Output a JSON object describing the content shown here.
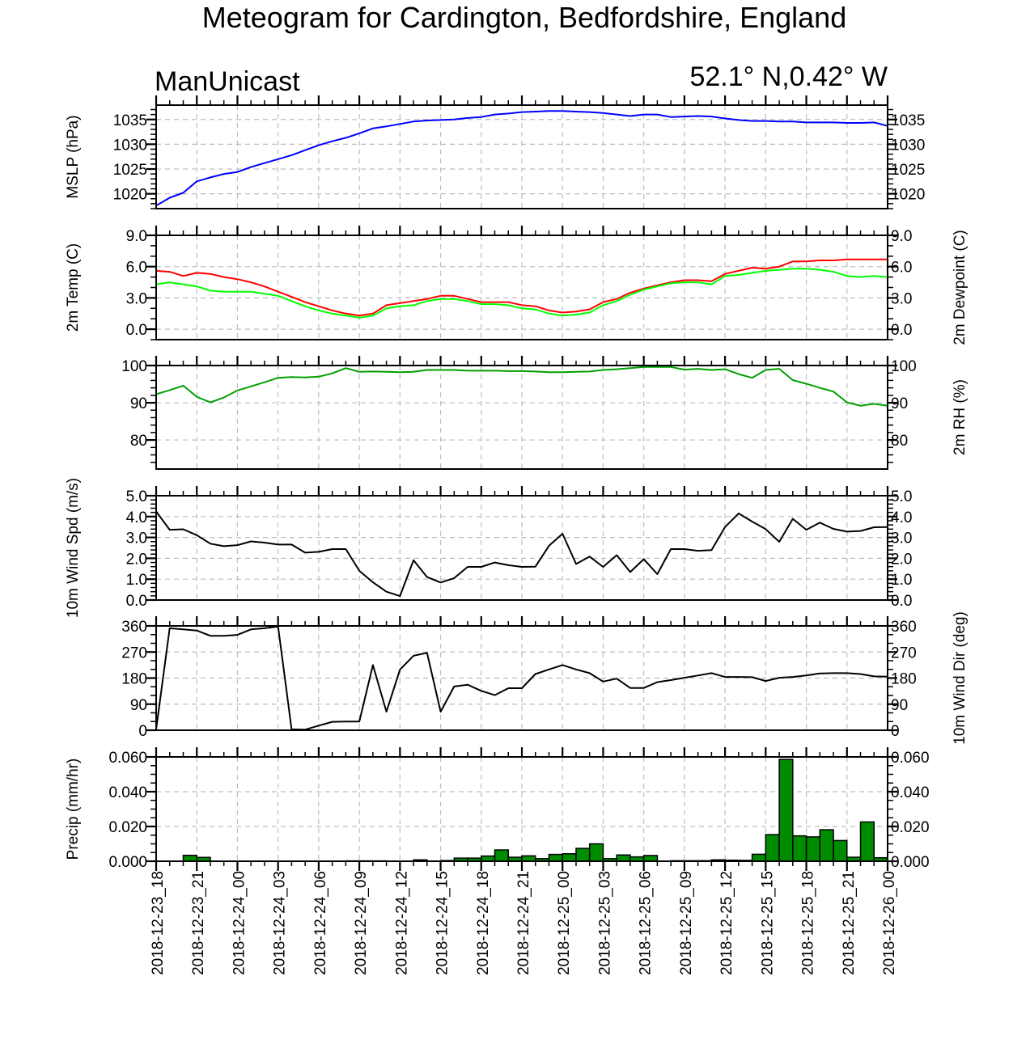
{
  "title": "Meteogram for Cardington, Bedfordshire, England",
  "model_label": "ManUnicast",
  "location_label": "52.1° N,0.42° W",
  "x_axis": {
    "start": "2018-12-23_18",
    "step_hours": 1,
    "range_hours": [
      0,
      54
    ],
    "tick_labels": [
      "2018-12-23_18",
      "2018-12-23_21",
      "2018-12-24_00",
      "2018-12-24_03",
      "2018-12-24_06",
      "2018-12-24_09",
      "2018-12-24_12",
      "2018-12-24_15",
      "2018-12-24_18",
      "2018-12-24_21",
      "2018-12-25_00",
      "2018-12-25_03",
      "2018-12-25_06",
      "2018-12-25_09",
      "2018-12-25_12",
      "2018-12-25_15",
      "2018-12-25_18",
      "2018-12-25_21",
      "2018-12-26_00"
    ]
  },
  "chart_data": [
    {
      "type": "line",
      "ylabel": "MSLP (hPa)",
      "ylabel_right": "",
      "ylim": [
        1017.0,
        1037.9
      ],
      "yticks": [
        1020,
        1025,
        1030,
        1035
      ],
      "ytick_labels": [
        "1020",
        "1025",
        "1030",
        "1035"
      ],
      "minor_step": 1,
      "right_tick_labels": true,
      "series": [
        {
          "name": "MSLP",
          "color": "#0000ff",
          "values": [
            1017.6,
            1019.2,
            1020.2,
            1022.5,
            1023.3,
            1024.0,
            1024.4,
            1025.4,
            1026.2,
            1027.0,
            1027.8,
            1028.8,
            1029.8,
            1030.6,
            1031.3,
            1032.2,
            1033.2,
            1033.6,
            1034.1,
            1034.6,
            1034.8,
            1034.9,
            1035.0,
            1035.3,
            1035.5,
            1036.0,
            1036.2,
            1036.5,
            1036.6,
            1036.7,
            1036.7,
            1036.6,
            1036.5,
            1036.3,
            1036.0,
            1035.7,
            1036.0,
            1036.0,
            1035.5,
            1035.6,
            1035.7,
            1035.6,
            1035.2,
            1034.9,
            1034.7,
            1034.7,
            1034.6,
            1034.6,
            1034.4,
            1034.4,
            1034.4,
            1034.3,
            1034.3,
            1034.4,
            1033.7
          ]
        }
      ]
    },
    {
      "type": "line",
      "ylabel": "2m Temp (C)",
      "ylabel_right": "2m Dewpoint (C)",
      "ylim": [
        -1.0,
        9.0
      ],
      "yticks": [
        0,
        3,
        6,
        9
      ],
      "ytick_labels": [
        "0.0",
        "3.0",
        "6.0",
        "9.0"
      ],
      "minor_step": 1,
      "right_tick_labels": true,
      "series": [
        {
          "name": "2m Temp",
          "color": "#ff0000",
          "values": [
            5.6,
            5.5,
            5.1,
            5.4,
            5.3,
            5.0,
            4.8,
            4.5,
            4.1,
            3.6,
            3.1,
            2.6,
            2.2,
            1.8,
            1.5,
            1.3,
            1.5,
            2.3,
            2.5,
            2.7,
            2.9,
            3.2,
            3.2,
            2.9,
            2.6,
            2.6,
            2.6,
            2.3,
            2.2,
            1.8,
            1.6,
            1.7,
            1.9,
            2.6,
            2.9,
            3.5,
            3.9,
            4.2,
            4.5,
            4.7,
            4.7,
            4.6,
            5.3,
            5.6,
            5.9,
            5.8,
            6.0,
            6.5,
            6.5,
            6.6,
            6.6,
            6.7,
            6.7,
            6.7,
            6.7
          ]
        },
        {
          "name": "2m Dewpoint",
          "color": "#00ff00",
          "values": [
            4.3,
            4.5,
            4.3,
            4.1,
            3.7,
            3.6,
            3.6,
            3.6,
            3.4,
            3.2,
            2.7,
            2.2,
            1.8,
            1.5,
            1.3,
            1.1,
            1.3,
            2.0,
            2.2,
            2.3,
            2.7,
            2.9,
            2.9,
            2.7,
            2.4,
            2.4,
            2.3,
            2.0,
            1.9,
            1.5,
            1.3,
            1.4,
            1.6,
            2.3,
            2.7,
            3.3,
            3.8,
            4.1,
            4.4,
            4.5,
            4.5,
            4.3,
            5.1,
            5.2,
            5.4,
            5.6,
            5.7,
            5.8,
            5.8,
            5.7,
            5.5,
            5.1,
            5.0,
            5.1,
            5.0
          ]
        }
      ]
    },
    {
      "type": "line",
      "ylabel": "",
      "ylabel_right": "2m RH (%)",
      "ylim": [
        72.2,
        100
      ],
      "yticks": [
        80,
        90,
        100
      ],
      "ytick_labels": [
        "80",
        "90",
        "100"
      ],
      "minor_step": 2,
      "right_tick_labels": true,
      "series": [
        {
          "name": "2m RH",
          "color": "#00a000",
          "values": [
            92.3,
            93.4,
            94.6,
            91.6,
            90.1,
            91.4,
            93.3,
            94.4,
            95.5,
            96.7,
            96.9,
            96.8,
            97.0,
            97.9,
            99.3,
            98.3,
            98.4,
            98.3,
            98.2,
            98.3,
            98.8,
            98.8,
            98.8,
            98.6,
            98.6,
            98.6,
            98.5,
            98.5,
            98.4,
            98.2,
            98.2,
            98.3,
            98.4,
            98.8,
            99.0,
            99.3,
            99.6,
            99.6,
            99.6,
            98.9,
            99.1,
            98.8,
            99.0,
            97.7,
            96.7,
            98.8,
            99.1,
            96.1,
            95.1,
            94.0,
            93.0,
            90.1,
            89.2,
            89.7,
            89.2
          ]
        }
      ]
    },
    {
      "type": "line",
      "ylabel": "10m Wind Spd (m/s)",
      "ylabel_right": "",
      "ylim": [
        0,
        5.0
      ],
      "yticks": [
        0,
        1,
        2,
        3,
        4,
        5
      ],
      "ytick_labels": [
        "0.0",
        "1.0",
        "2.0",
        "3.0",
        "4.0",
        "5.0"
      ],
      "minor_step": 0.2,
      "right_tick_labels": true,
      "series": [
        {
          "name": "10m Wind Speed",
          "color": "#000000",
          "values": [
            4.25,
            3.37,
            3.39,
            3.11,
            2.7,
            2.58,
            2.63,
            2.81,
            2.75,
            2.66,
            2.66,
            2.27,
            2.31,
            2.44,
            2.44,
            1.4,
            0.85,
            0.4,
            0.19,
            1.91,
            1.1,
            0.84,
            1.05,
            1.59,
            1.59,
            1.8,
            1.67,
            1.59,
            1.6,
            2.6,
            3.18,
            1.73,
            2.08,
            1.59,
            2.15,
            1.34,
            1.96,
            1.24,
            2.44,
            2.44,
            2.36,
            2.39,
            3.5,
            4.15,
            3.76,
            3.4,
            2.79,
            3.89,
            3.37,
            3.71,
            3.41,
            3.28,
            3.31,
            3.49,
            3.5
          ]
        }
      ]
    },
    {
      "type": "line",
      "ylabel": "",
      "ylabel_right": "10m Wind Dir (deg)",
      "ylim": [
        0,
        360
      ],
      "yticks": [
        0,
        90,
        180,
        270,
        360
      ],
      "ytick_labels": [
        "0",
        "90",
        "180",
        "270",
        "360"
      ],
      "minor_step": 30,
      "right_tick_labels": true,
      "series": [
        {
          "name": "10m Wind Direction",
          "color": "#000000",
          "values": [
            3,
            352,
            348,
            344,
            326,
            326,
            329,
            348,
            352,
            358,
            3,
            2,
            16,
            29,
            30,
            30,
            225,
            64,
            209,
            257,
            267,
            64,
            151,
            157,
            136,
            121,
            145,
            145,
            194,
            210,
            225,
            210,
            197,
            168,
            178,
            146,
            146,
            166,
            173,
            181,
            189,
            197,
            184,
            184,
            183,
            170,
            181,
            184,
            189,
            196,
            197,
            197,
            194,
            186,
            185
          ]
        }
      ]
    },
    {
      "type": "bar",
      "ylabel": "Precip (mm/hr)",
      "ylabel_right": "",
      "ylim": [
        0,
        0.06
      ],
      "yticks": [
        0,
        0.02,
        0.04,
        0.06
      ],
      "ytick_labels": [
        "0.000",
        "0.020",
        "0.040",
        "0.060"
      ],
      "minor_step": 0.005,
      "right_tick_labels": true,
      "series": [
        {
          "name": "Precipitation",
          "color": "#008c00",
          "values": [
            0,
            0,
            0.0034,
            0.0022,
            0,
            0,
            0,
            0,
            0,
            0,
            0,
            0,
            0,
            0,
            0.0002,
            0.0002,
            0.0002,
            0,
            0,
            0.0008,
            0,
            0.0004,
            0.0018,
            0.0018,
            0.003,
            0.0065,
            0.0023,
            0.0031,
            0.0015,
            0.0039,
            0.0043,
            0.0074,
            0.01,
            0.0015,
            0.0036,
            0.0025,
            0.0033,
            0,
            0.0003,
            0.0003,
            0.0003,
            0.0008,
            0.0006,
            0.0005,
            0.004,
            0.0153,
            0.0586,
            0.0146,
            0.014,
            0.0181,
            0.0119,
            0.0023,
            0.0226,
            0.002
          ]
        }
      ]
    }
  ]
}
